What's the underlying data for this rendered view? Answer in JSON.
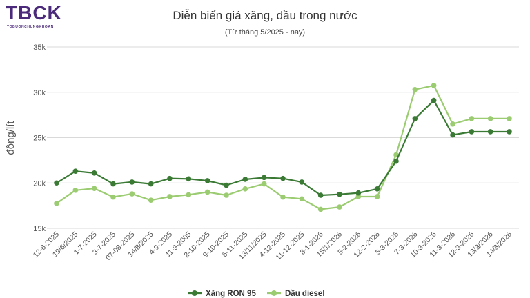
{
  "logo": {
    "text": "TBCK",
    "tagline": "TOBUONCHUNGKHOAN",
    "color": "#4b2a7b"
  },
  "chart_data": {
    "type": "line",
    "title": "Diễn biến giá xăng, dầu trong nước",
    "subtitle": "(Từ tháng 5/2025 - nay)",
    "xlabel": "",
    "ylabel": "đồng/lít",
    "ylim": [
      15000,
      35000
    ],
    "y_ticks": [
      15000,
      20000,
      25000,
      30000,
      35000
    ],
    "y_tick_labels": [
      "15k",
      "20k",
      "25k",
      "30k",
      "35k"
    ],
    "grid": true,
    "legend_position": "bottom",
    "categories": [
      "12-6-2025",
      "19/6/2025",
      "1-7-2025",
      "3-7-2025",
      "07-08-2025",
      "14/8/2025",
      "4-9-2025",
      "11-9-2005",
      "2-10-2025",
      "9-10-2025",
      "6-11-2025",
      "13/11/2025",
      "4-12-2025",
      "11-12-2025",
      "8-1-2026",
      "15/1/2026",
      "5-2-2026",
      "12-2-2026",
      "5-3-2026",
      "7-3-2026",
      "10-3-2026",
      "11-3-2026",
      "12-3-2026",
      "13/3/2026",
      "14/3/2026"
    ],
    "series": [
      {
        "name": "Xăng RON 95",
        "color": "#3a7a35",
        "values": [
          20000,
          21300,
          21100,
          19900,
          20100,
          19900,
          20500,
          20450,
          20250,
          19750,
          20400,
          20600,
          20500,
          20100,
          18650,
          18750,
          18900,
          19350,
          22400,
          27100,
          29100,
          25300,
          25650,
          25650,
          25650
        ]
      },
      {
        "name": "Dầu diesel",
        "color": "#9ccc72",
        "values": [
          17750,
          19200,
          19400,
          18450,
          18800,
          18100,
          18500,
          18700,
          19000,
          18650,
          19350,
          19900,
          18450,
          18250,
          17100,
          17350,
          18500,
          18500,
          23100,
          30300,
          30750,
          26500,
          27100,
          27100,
          27100
        ]
      }
    ]
  }
}
